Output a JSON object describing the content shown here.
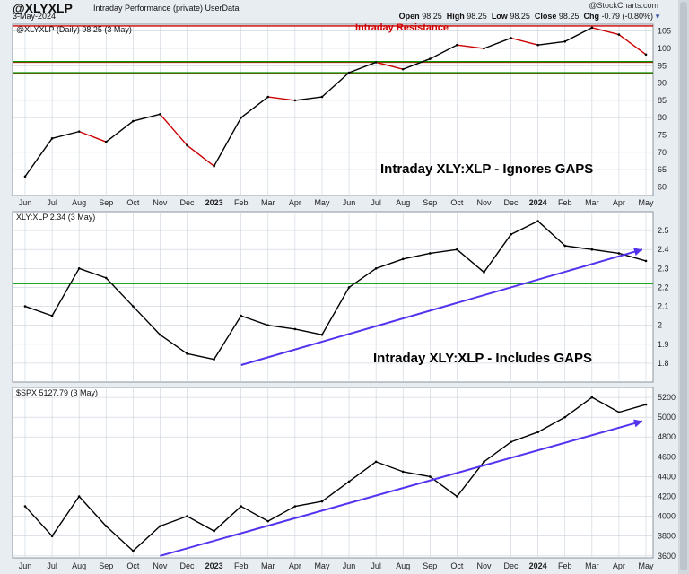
{
  "header": {
    "symbol": "@XLYXLP",
    "description": "Intraday Performance (private) UserData",
    "date": "3-May-2024",
    "copyright": "@StockCharts.com",
    "open_label": "Open",
    "open_value": "98.25",
    "high_label": "High",
    "high_value": "98.25",
    "low_label": "Low",
    "low_value": "98.25",
    "close_label": "Close",
    "close_value": "98.25",
    "chg_label": "Chg",
    "chg_value": "-0.79 (-0.80%)",
    "chg_icon": "triangle-down-icon"
  },
  "x_axis_labels": [
    "Jun",
    "Jul",
    "Aug",
    "Sep",
    "Oct",
    "Nov",
    "Dec",
    "2023",
    "Feb",
    "Mar",
    "Apr",
    "May",
    "Jun",
    "Jul",
    "Aug",
    "Sep",
    "Oct",
    "Nov",
    "Dec",
    "2024",
    "Feb",
    "Mar",
    "Apr",
    "May"
  ],
  "colors": {
    "background": "#ffffff",
    "frame": "#e8edf2",
    "grid": "#c9d2dc",
    "price": "#000000",
    "declining": "#cc0000",
    "resistance": "#cc0000",
    "support": "#009900",
    "trendline": "#5533ee"
  },
  "chart_data": [
    {
      "type": "line",
      "panel": 1,
      "legend": "@XLYXLP (Daily) 98.25 (3 May)",
      "y_ticks": [
        60,
        65,
        70,
        75,
        80,
        85,
        90,
        95,
        100,
        105
      ],
      "ylim": [
        57.5,
        107
      ],
      "x": [
        "Jun",
        "Jul",
        "Aug",
        "Sep",
        "Oct",
        "Nov",
        "Dec",
        "2023",
        "Feb",
        "Mar",
        "Apr",
        "May",
        "Jun",
        "Jul",
        "Aug",
        "Sep",
        "Oct",
        "Nov",
        "Dec",
        "2024",
        "Feb",
        "Mar",
        "Apr",
        "May"
      ],
      "series": [
        {
          "values": [
            63,
            74,
            76,
            73,
            79,
            81,
            72,
            66,
            80,
            86,
            85,
            86,
            93,
            96,
            94,
            97,
            101,
            100,
            103,
            101,
            102,
            106,
            104,
            98.25
          ]
        }
      ],
      "annotations": [
        {
          "text": "Intraday Resistance",
          "color": "#cc0000"
        },
        {
          "text": "Intraday XLY:XLP - Ignores GAPS",
          "color": "#000000"
        }
      ],
      "hlines": [
        {
          "value": 106.5,
          "color": "#cc0000"
        },
        {
          "value": 96,
          "color": "#cc0000"
        },
        {
          "value": 92.8,
          "color": "#cc0000"
        },
        {
          "value": 96.2,
          "color": "#009900"
        },
        {
          "value": 93,
          "color": "#009900"
        }
      ]
    },
    {
      "type": "line",
      "panel": 2,
      "legend": "XLY:XLP 2.34 (3 May)",
      "y_ticks": [
        1.8,
        1.9,
        2.0,
        2.1,
        2.2,
        2.3,
        2.4,
        2.5
      ],
      "ylim": [
        1.7,
        2.6
      ],
      "x": [
        "Jun",
        "Jul",
        "Aug",
        "Sep",
        "Oct",
        "Nov",
        "Dec",
        "2023",
        "Feb",
        "Mar",
        "Apr",
        "May",
        "Jun",
        "Jul",
        "Aug",
        "Sep",
        "Oct",
        "Nov",
        "Dec",
        "2024",
        "Feb",
        "Mar",
        "Apr",
        "May"
      ],
      "series": [
        {
          "values": [
            2.1,
            2.05,
            2.3,
            2.25,
            2.1,
            1.95,
            1.85,
            1.82,
            2.05,
            2.0,
            1.98,
            1.95,
            2.2,
            2.3,
            2.35,
            2.38,
            2.4,
            2.28,
            2.48,
            2.55,
            2.42,
            2.4,
            2.38,
            2.34
          ]
        }
      ],
      "annotations": [
        {
          "text": "Intraday XLY:XLP - Includes GAPS",
          "color": "#000000"
        }
      ],
      "hlines": [
        {
          "value": 2.22,
          "color": "#009900"
        }
      ],
      "trendline": {
        "from": [
          "Feb",
          1.79
        ],
        "to": [
          "May",
          2.4
        ],
        "color": "#5533ee"
      }
    },
    {
      "type": "line",
      "panel": 3,
      "legend": "$SPX 5127.79 (3 May)",
      "y_ticks": [
        3600,
        3800,
        4000,
        4200,
        4400,
        4600,
        4800,
        5000,
        5200
      ],
      "ylim": [
        3580,
        5300
      ],
      "x": [
        "Jun",
        "Jul",
        "Aug",
        "Sep",
        "Oct",
        "Nov",
        "Dec",
        "2023",
        "Feb",
        "Mar",
        "Apr",
        "May",
        "Jun",
        "Jul",
        "Aug",
        "Sep",
        "Oct",
        "Nov",
        "Dec",
        "2024",
        "Feb",
        "Mar",
        "Apr",
        "May"
      ],
      "series": [
        {
          "values": [
            4100,
            3800,
            4200,
            3900,
            3650,
            3900,
            4000,
            3850,
            4100,
            3950,
            4100,
            4150,
            4350,
            4550,
            4450,
            4400,
            4200,
            4550,
            4750,
            4850,
            5000,
            5200,
            5050,
            5127.79
          ]
        }
      ],
      "trendline": {
        "from": [
          "Nov",
          3600
        ],
        "to": [
          "May",
          4960
        ],
        "color": "#5533ee"
      }
    }
  ]
}
